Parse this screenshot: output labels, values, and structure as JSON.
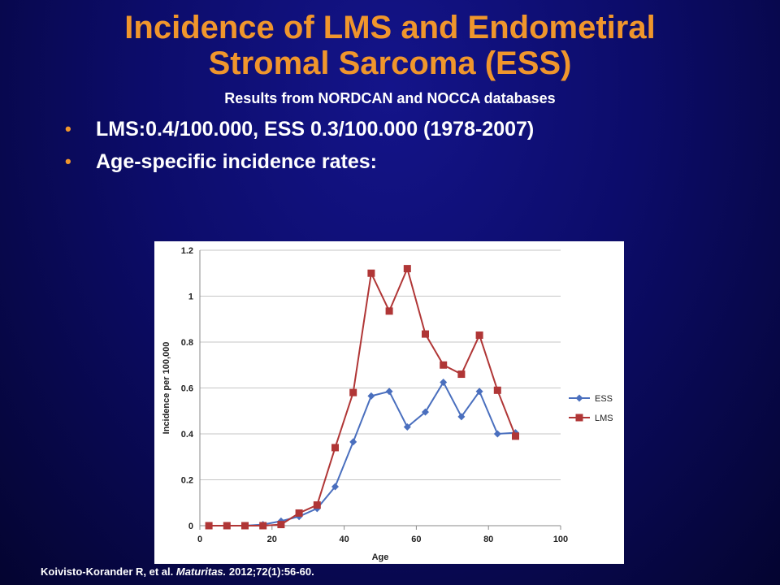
{
  "slide": {
    "title_line_1": "Incidence of LMS and Endometiral",
    "title_line_2": "Stromal Sarcoma (ESS)",
    "subtitle": "Results from NORDCAN and NOCCA databases",
    "bullets": [
      "LMS:0.4/100.000, ESS 0.3/100.000 (1978-2007)",
      "Age-specific incidence rates:"
    ],
    "citation": {
      "authors": "Koivisto-Korander R, et al. ",
      "journal": "Maturitas.",
      "details": " 2012;72(1):56-60."
    }
  },
  "colors": {
    "title": "#f0962c",
    "bullet_marker": "#f0962c",
    "ess": "#4a6fbe",
    "lms": "#b03636"
  },
  "chart_data": {
    "type": "line",
    "title": "",
    "xlabel": "Age",
    "ylabel": "Incidence per 100,000",
    "xlim": [
      0,
      100
    ],
    "ylim": [
      0,
      1.2
    ],
    "x_ticks": [
      "0",
      "20",
      "40",
      "60",
      "80",
      "100"
    ],
    "y_ticks": [
      "0",
      "0.2",
      "0.4",
      "0.6",
      "0.8",
      "1",
      "1.2"
    ],
    "grid": true,
    "legend": "right",
    "x": [
      2.5,
      7.5,
      12.5,
      17.5,
      22.5,
      27.5,
      32.5,
      37.5,
      42.5,
      47.5,
      52.5,
      57.5,
      62.5,
      67.5,
      72.5,
      77.5,
      82.5,
      87.5
    ],
    "series": [
      {
        "name": "ESS",
        "marker": "diamond",
        "values": [
          0,
          0,
          0,
          0.005,
          0.02,
          0.04,
          0.075,
          0.17,
          0.365,
          0.565,
          0.585,
          0.43,
          0.495,
          0.625,
          0.475,
          0.585,
          0.4,
          0.405
        ]
      },
      {
        "name": "LMS",
        "marker": "square",
        "values": [
          0,
          0,
          0,
          0,
          0.005,
          0.055,
          0.09,
          0.34,
          0.58,
          1.1,
          0.935,
          1.12,
          0.835,
          0.7,
          0.66,
          0.83,
          0.59,
          0.39
        ]
      }
    ]
  }
}
